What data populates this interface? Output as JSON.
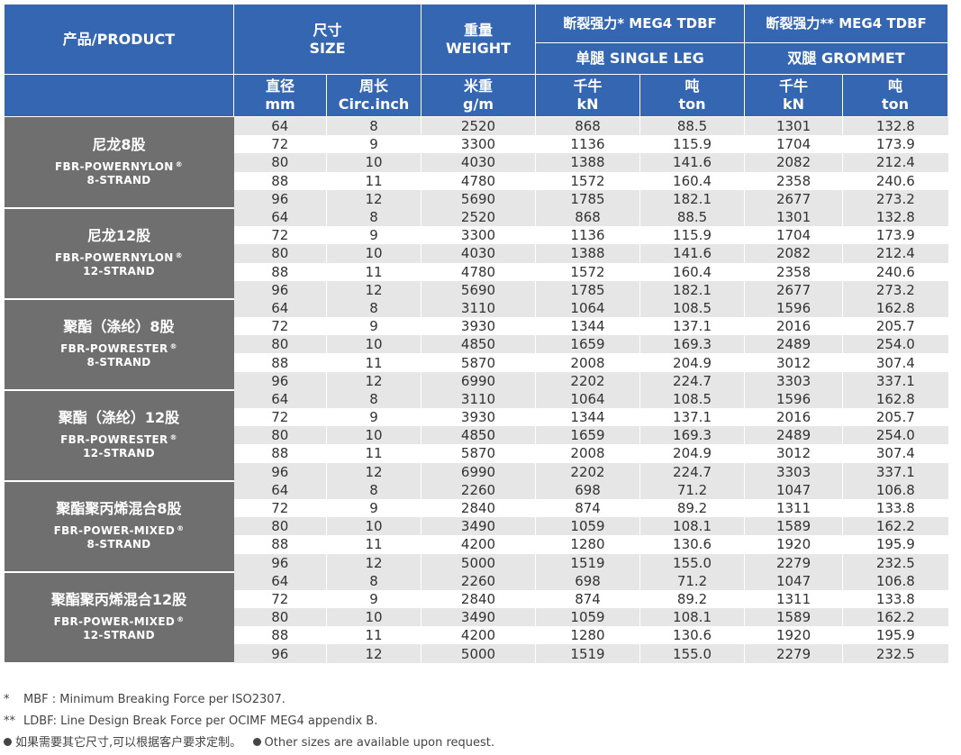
{
  "header": {
    "product": "产品/PRODUCT",
    "size_cn": "尺寸",
    "size_en": "SIZE",
    "weight_cn": "重量",
    "weight_en": "WEIGHT",
    "mbf_single": "断裂强力* MEG4 TDBF",
    "mbf_grommet": "断裂强力** MEG4 TDBF",
    "single_leg": "单腿 SINGLE LEG",
    "grommet": "双腿 GROMMET",
    "diameter_cn": "直径",
    "diameter_unit": "mm",
    "circ_cn": "周长",
    "circ_unit": "Circ.inch",
    "weight_unit_cn": "米重",
    "weight_unit": "g/m",
    "kn_cn": "千牛",
    "kn_unit": "kN",
    "ton_cn": "吨",
    "ton_unit": "ton"
  },
  "groups": [
    {
      "name_cn": "尼龙8股",
      "name_en1": "FBR-POWERNYLON",
      "name_en2": "8-STRAND",
      "rows": [
        [
          "64",
          "8",
          "2520",
          "868",
          "88.5",
          "1301",
          "132.8"
        ],
        [
          "72",
          "9",
          "3300",
          "1136",
          "115.9",
          "1704",
          "173.9"
        ],
        [
          "80",
          "10",
          "4030",
          "1388",
          "141.6",
          "2082",
          "212.4"
        ],
        [
          "88",
          "11",
          "4780",
          "1572",
          "160.4",
          "2358",
          "240.6"
        ],
        [
          "96",
          "12",
          "5690",
          "1785",
          "182.1",
          "2677",
          "273.2"
        ]
      ]
    },
    {
      "name_cn": "尼龙12股",
      "name_en1": "FBR-POWERNYLON",
      "name_en2": "12-STRAND",
      "rows": [
        [
          "64",
          "8",
          "2520",
          "868",
          "88.5",
          "1301",
          "132.8"
        ],
        [
          "72",
          "9",
          "3300",
          "1136",
          "115.9",
          "1704",
          "173.9"
        ],
        [
          "80",
          "10",
          "4030",
          "1388",
          "141.6",
          "2082",
          "212.4"
        ],
        [
          "88",
          "11",
          "4780",
          "1572",
          "160.4",
          "2358",
          "240.6"
        ],
        [
          "96",
          "12",
          "5690",
          "1785",
          "182.1",
          "2677",
          "273.2"
        ]
      ]
    },
    {
      "name_cn": "聚酯（涤纶）8股",
      "name_en1": "FBR-POWRESTER",
      "name_en2": "8-STRAND",
      "rows": [
        [
          "64",
          "8",
          "3110",
          "1064",
          "108.5",
          "1596",
          "162.8"
        ],
        [
          "72",
          "9",
          "3930",
          "1344",
          "137.1",
          "2016",
          "205.7"
        ],
        [
          "80",
          "10",
          "4850",
          "1659",
          "169.3",
          "2489",
          "254.0"
        ],
        [
          "88",
          "11",
          "5870",
          "2008",
          "204.9",
          "3012",
          "307.4"
        ],
        [
          "96",
          "12",
          "6990",
          "2202",
          "224.7",
          "3303",
          "337.1"
        ]
      ]
    },
    {
      "name_cn": "聚酯（涤纶）12股",
      "name_en1": "FBR-POWRESTER",
      "name_en2": "12-STRAND",
      "rows": [
        [
          "64",
          "8",
          "3110",
          "1064",
          "108.5",
          "1596",
          "162.8"
        ],
        [
          "72",
          "9",
          "3930",
          "1344",
          "137.1",
          "2016",
          "205.7"
        ],
        [
          "80",
          "10",
          "4850",
          "1659",
          "169.3",
          "2489",
          "254.0"
        ],
        [
          "88",
          "11",
          "5870",
          "2008",
          "204.9",
          "3012",
          "307.4"
        ],
        [
          "96",
          "12",
          "6990",
          "2202",
          "224.7",
          "3303",
          "337.1"
        ]
      ]
    },
    {
      "name_cn": "聚酯聚丙烯混合8股",
      "name_en1": "FBR-POWER-MIXED",
      "name_en2": "8-STRAND",
      "rows": [
        [
          "64",
          "8",
          "2260",
          "698",
          "71.2",
          "1047",
          "106.8"
        ],
        [
          "72",
          "9",
          "2840",
          "874",
          "89.2",
          "1311",
          "133.8"
        ],
        [
          "80",
          "10",
          "3490",
          "1059",
          "108.1",
          "1589",
          "162.2"
        ],
        [
          "88",
          "11",
          "4200",
          "1280",
          "130.6",
          "1920",
          "195.9"
        ],
        [
          "96",
          "12",
          "5000",
          "1519",
          "155.0",
          "2279",
          "232.5"
        ]
      ]
    },
    {
      "name_cn": "聚酯聚丙烯混合12股",
      "name_en1": "FBR-POWER-MIXED",
      "name_en2": "12-STRAND",
      "rows": [
        [
          "64",
          "8",
          "2260",
          "698",
          "71.2",
          "1047",
          "106.8"
        ],
        [
          "72",
          "9",
          "2840",
          "874",
          "89.2",
          "1311",
          "133.8"
        ],
        [
          "80",
          "10",
          "3490",
          "1059",
          "108.1",
          "1589",
          "162.2"
        ],
        [
          "88",
          "11",
          "4200",
          "1280",
          "130.6",
          "1920",
          "195.9"
        ],
        [
          "96",
          "12",
          "5000",
          "1519",
          "155.0",
          "2279",
          "232.5"
        ]
      ]
    }
  ],
  "notes": {
    "mbf_mark": "*",
    "mbf": "MBF : Minimum Breaking Force per ISO2307.",
    "ldbf_mark": "**",
    "ldbf": "LDBF: Line Design Break Force per OCIMF MEG4 appendix B.",
    "other_cn": "如果需要其它尺寸,可以根据客户要求定制。",
    "other_en": "Other sizes are available upon request."
  },
  "colors": {
    "header_bg": "#3566b2",
    "product_bg": "#6f6f6f",
    "row_shade": "#e6e6e6"
  }
}
